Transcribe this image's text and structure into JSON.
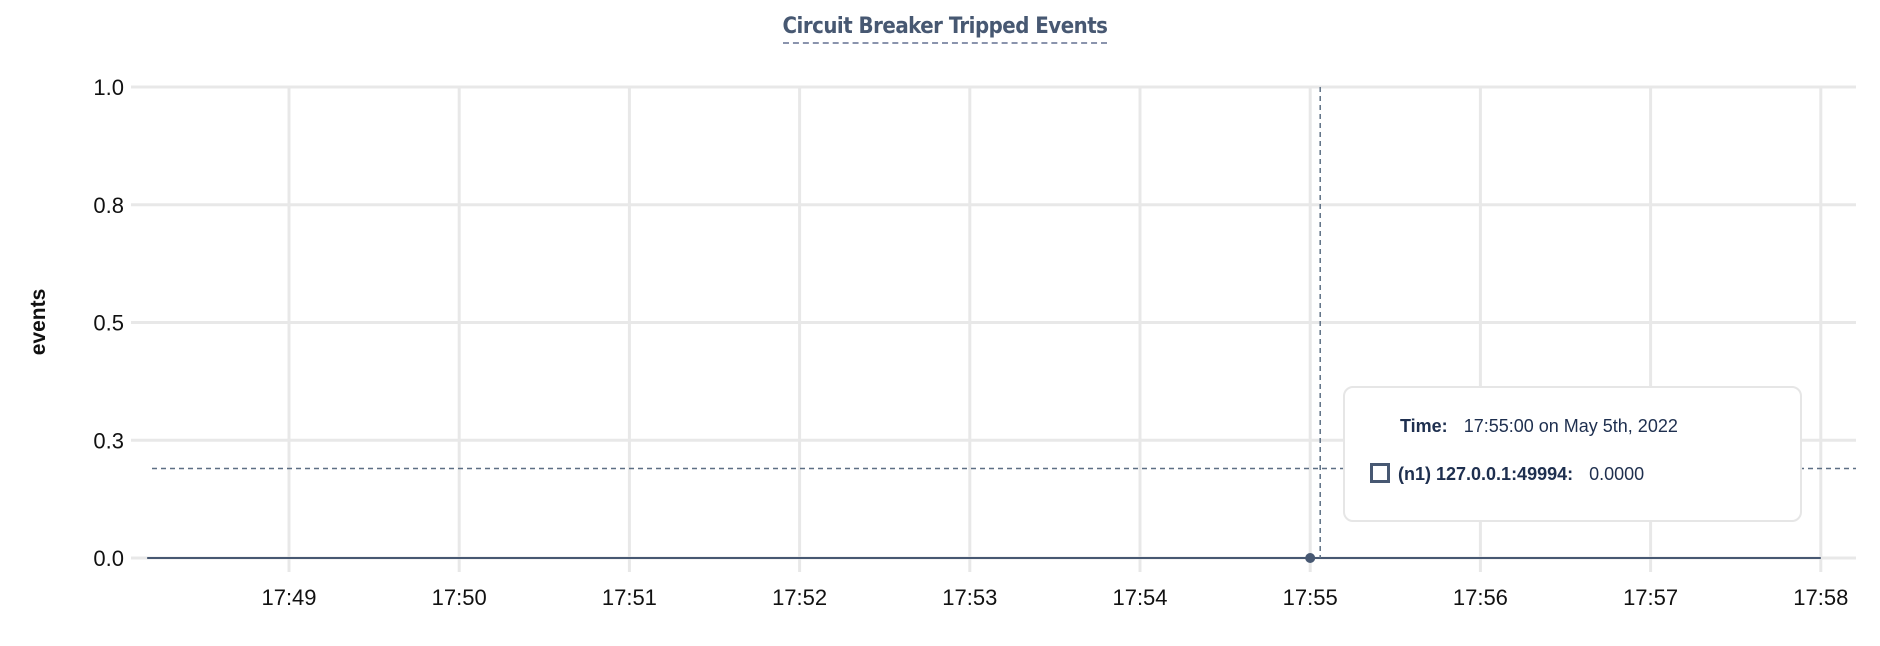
{
  "chart_data": {
    "type": "line",
    "title": "Circuit Breaker Tripped Events",
    "ylabel": "events",
    "xlabel": "",
    "ylim": [
      0,
      1
    ],
    "xlim": [
      "17:48:10",
      "17:58:30"
    ],
    "y_ticks": [
      0,
      0.25,
      0.5,
      0.75,
      1.0
    ],
    "y_tick_labels": [
      "0.0",
      "0.3",
      "0.5",
      "0.8",
      "1.0"
    ],
    "x_ticks": [
      "17:49",
      "17:50",
      "17:51",
      "17:52",
      "17:53",
      "17:54",
      "17:55",
      "17:56",
      "17:57",
      "17:58"
    ],
    "grid": true,
    "series": [
      {
        "name": "(n1) 127.0.0.1:49994",
        "color": "#475872",
        "x": [
          "17:48:10",
          "17:49",
          "17:50",
          "17:51",
          "17:52",
          "17:53",
          "17:54",
          "17:55",
          "17:56",
          "17:57",
          "17:58"
        ],
        "y": [
          0,
          0,
          0,
          0,
          0,
          0,
          0,
          0,
          0,
          0,
          0
        ]
      }
    ],
    "hover": {
      "x": "17:55",
      "y": 0,
      "crosshair_y": 0.19
    }
  },
  "tooltip": {
    "time_label": "Time:",
    "time_value": "17:55:00 on May 5th, 2022",
    "series_label": "(n1) 127.0.0.1:49994:",
    "series_value": "0.0000"
  }
}
